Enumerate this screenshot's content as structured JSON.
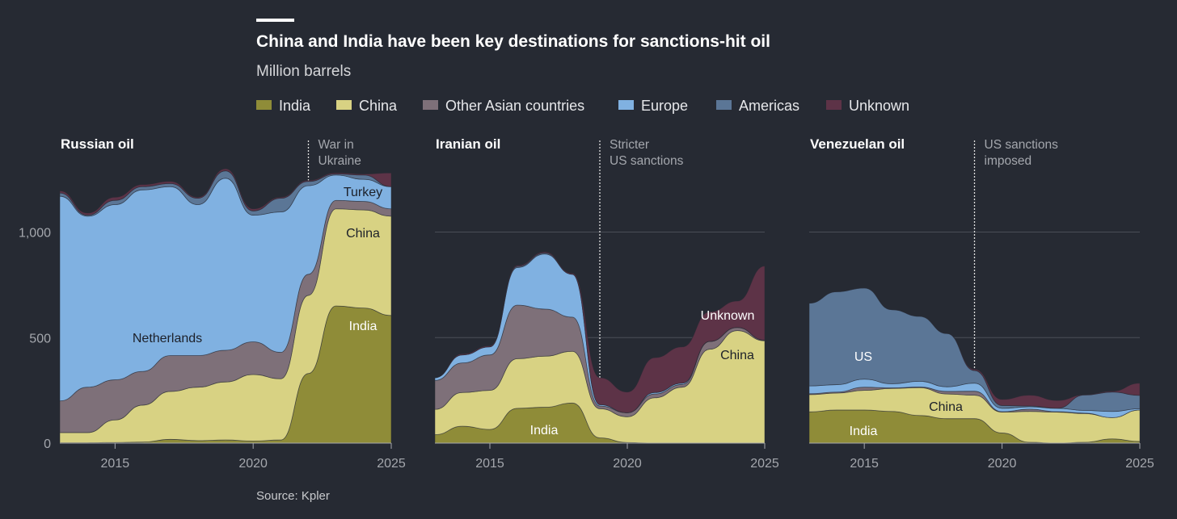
{
  "title": "China and India have been key destinations for sanctions-hit oil",
  "subtitle": "Million barrels",
  "source": "Source: Kpler",
  "legend": [
    {
      "name": "India",
      "color": "#8f8c38"
    },
    {
      "name": "China",
      "color": "#d8d283"
    },
    {
      "name": "Other Asian countries",
      "color": "#7e7079"
    },
    {
      "name": "Europe",
      "color": "#80b1e1"
    },
    {
      "name": "Americas",
      "color": "#5b7696"
    },
    {
      "name": "Unknown",
      "color": "#5d3347"
    }
  ],
  "chart_data": [
    {
      "type": "area",
      "stacked": true,
      "title": "Russian oil",
      "x": [
        2013,
        2014,
        2015,
        2016,
        2017,
        2018,
        2019,
        2020,
        2021,
        2022,
        2023,
        2024,
        2025
      ],
      "xticks": [
        "2015",
        "2020",
        "2025"
      ],
      "yticks": [
        "0",
        "500",
        "1,000"
      ],
      "ylim": [
        0,
        1300
      ],
      "annotation": {
        "x": 2022,
        "lines": [
          "War in",
          "Ukraine"
        ]
      },
      "area_labels": [
        "Netherlands",
        "Turkey",
        "China",
        "India"
      ],
      "series": [
        {
          "name": "India",
          "values": [
            2,
            2,
            3,
            5,
            18,
            12,
            15,
            10,
            15,
            330,
            650,
            640,
            605
          ]
        },
        {
          "name": "China",
          "values": [
            48,
            48,
            107,
            175,
            227,
            253,
            275,
            315,
            290,
            370,
            460,
            465,
            470
          ]
        },
        {
          "name": "Other Asian countries",
          "values": [
            150,
            215,
            190,
            160,
            170,
            150,
            150,
            155,
            125,
            100,
            40,
            40,
            35
          ]
        },
        {
          "name": "Europe",
          "values": [
            970,
            810,
            830,
            860,
            800,
            715,
            815,
            600,
            665,
            420,
            120,
            105,
            105
          ]
        },
        {
          "name": "Americas",
          "values": [
            15,
            5,
            20,
            15,
            15,
            30,
            35,
            20,
            65,
            20,
            5,
            20,
            0
          ]
        },
        {
          "name": "Unknown",
          "values": [
            10,
            10,
            15,
            10,
            10,
            5,
            10,
            10,
            5,
            5,
            5,
            5,
            65
          ]
        }
      ]
    },
    {
      "type": "area",
      "stacked": true,
      "title": "Iranian oil",
      "x": [
        2013,
        2014,
        2015,
        2016,
        2017,
        2018,
        2019,
        2020,
        2021,
        2022,
        2023,
        2024,
        2025
      ],
      "xticks": [
        "2015",
        "2020",
        "2025"
      ],
      "ylim": [
        0,
        1300
      ],
      "grid": true,
      "annotation": {
        "x": 2019,
        "lines": [
          "Stricter",
          "US sanctions"
        ]
      },
      "area_labels": [
        "India",
        "China",
        "Unknown"
      ],
      "series": [
        {
          "name": "India",
          "values": [
            40,
            80,
            65,
            165,
            170,
            190,
            25,
            3,
            0,
            0,
            0,
            0,
            0
          ]
        },
        {
          "name": "China",
          "values": [
            120,
            160,
            185,
            235,
            242,
            245,
            138,
            122,
            215,
            265,
            445,
            533,
            485
          ]
        },
        {
          "name": "Other Asian countries",
          "values": [
            137,
            140,
            168,
            254,
            223,
            162,
            13,
            19,
            18,
            13,
            37,
            15,
            3
          ]
        },
        {
          "name": "Europe",
          "values": [
            13,
            38,
            38,
            178,
            261,
            203,
            6,
            0,
            7,
            6,
            0,
            0,
            0
          ]
        },
        {
          "name": "Americas",
          "values": [
            0,
            0,
            0,
            5,
            5,
            0,
            0,
            0,
            0,
            0,
            0,
            0,
            0
          ]
        },
        {
          "name": "Unknown",
          "values": [
            0,
            5,
            5,
            5,
            5,
            5,
            128,
            98,
            165,
            172,
            140,
            125,
            351
          ]
        }
      ]
    },
    {
      "type": "area",
      "stacked": true,
      "title": "Venezuelan oil",
      "x": [
        2013,
        2014,
        2015,
        2016,
        2017,
        2018,
        2019,
        2020,
        2021,
        2022,
        2023,
        2024,
        2025
      ],
      "xticks": [
        "2015",
        "2020",
        "2025"
      ],
      "ylim": [
        0,
        1300
      ],
      "grid": true,
      "annotation": {
        "x": 2019,
        "lines": [
          "US sanctions",
          "imposed"
        ]
      },
      "area_labels": [
        "US",
        "China",
        "India"
      ],
      "series": [
        {
          "name": "India",
          "values": [
            148,
            157,
            157,
            150,
            131,
            116,
            116,
            48,
            4,
            0,
            4,
            20,
            8
          ]
        },
        {
          "name": "China",
          "values": [
            82,
            80,
            93,
            109,
            132,
            117,
            111,
            99,
            146,
            147,
            136,
            101,
            149
          ]
        },
        {
          "name": "Other Asian countries",
          "values": [
            4,
            5,
            15,
            3,
            3,
            12,
            19,
            2,
            11,
            2,
            2,
            0,
            0
          ]
        },
        {
          "name": "Europe",
          "values": [
            37,
            35,
            38,
            19,
            27,
            22,
            38,
            16,
            11,
            16,
            13,
            29,
            6
          ]
        },
        {
          "name": "Americas",
          "values": [
            392,
            440,
            432,
            351,
            308,
            252,
            60,
            13,
            4,
            0,
            73,
            92,
            63
          ]
        },
        {
          "name": "Unknown",
          "values": [
            0,
            0,
            0,
            0,
            0,
            0,
            6,
            29,
            51,
            37,
            1,
            4,
            58
          ]
        }
      ]
    }
  ]
}
